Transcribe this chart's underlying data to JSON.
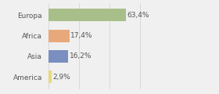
{
  "categories": [
    "Europa",
    "Africa",
    "Asia",
    "America"
  ],
  "values": [
    63.4,
    17.4,
    16.2,
    2.9
  ],
  "labels": [
    "63,4%",
    "17,4%",
    "16,2%",
    "2,9%"
  ],
  "bar_colors": [
    "#a8bf8a",
    "#e8a97a",
    "#7a8fbf",
    "#e8d87a"
  ],
  "background_color": "#f0f0f0",
  "xlim": [
    0,
    100
  ],
  "label_fontsize": 6.5,
  "cat_fontsize": 6.5,
  "grid_color": "#d0d0d0",
  "text_color": "#555555"
}
